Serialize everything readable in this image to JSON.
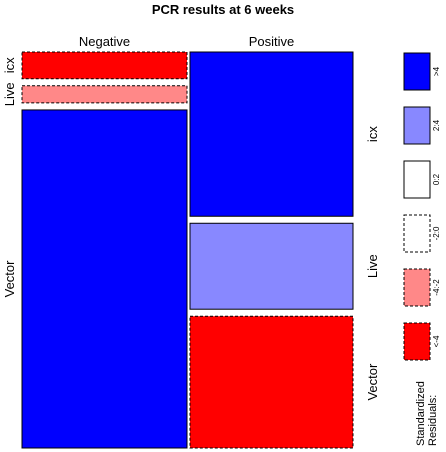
{
  "chart_data": {
    "type": "mosaic",
    "title": "PCR results at 6 weeks",
    "columns": [
      "Negative",
      "Positive"
    ],
    "rows": [
      "icx",
      "Live",
      "Vector"
    ],
    "column_proportions": [
      0.5,
      0.5
    ],
    "cell_proportions": {
      "Negative": [
        0.07,
        0.045,
        0.885
      ],
      "Positive": [
        0.43,
        0.225,
        0.345
      ]
    },
    "residual_bins": [
      {
        "label": ">4",
        "fill": "#0000ff",
        "line": "solid"
      },
      {
        "label": "2:4",
        "fill": "#8888ff",
        "line": "solid"
      },
      {
        "label": "0:2",
        "fill": "#ffffff",
        "line": "solid"
      },
      {
        "label": "-2:0",
        "fill": "#ffffff",
        "line": "dashed"
      },
      {
        "label": "-4:-2",
        "fill": "#ff8888",
        "line": "dashed"
      },
      {
        "label": "<-4",
        "fill": "#ff0000",
        "line": "dashed"
      }
    ],
    "cell_bins": {
      "Negative": [
        5,
        4,
        0
      ],
      "Positive": [
        0,
        1,
        5
      ]
    },
    "legend_title": "Standardized\nResiduals:"
  }
}
